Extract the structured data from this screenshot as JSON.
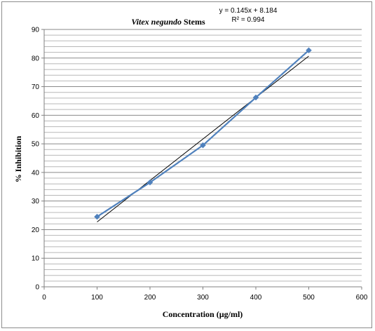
{
  "chart_data": {
    "type": "scatter",
    "title_italic": "Vitex negundo",
    "title_rest": " Stems",
    "xlabel": "Concentration (µg/ml)",
    "ylabel": "% Inhibition",
    "xlim": [
      0,
      600
    ],
    "ylim": [
      0,
      90
    ],
    "x_ticks": [
      0,
      100,
      200,
      300,
      400,
      500,
      600
    ],
    "y_ticks": [
      0,
      10,
      20,
      30,
      40,
      50,
      60,
      70,
      80,
      90
    ],
    "grid": true,
    "series": [
      {
        "x": [
          100,
          200,
          300,
          400,
          500
        ],
        "y": [
          24.5,
          36.5,
          49.5,
          66.2,
          82.7
        ],
        "color": "#4f81bd",
        "marker": "diamond"
      }
    ],
    "trendline": {
      "type": "linear",
      "slope": 0.145,
      "intercept": 8.184,
      "x_range": [
        100,
        500
      ],
      "color": "#000000",
      "equation": "y = 0.145x + 8.184",
      "r2_label": "R² = 0.994"
    }
  }
}
